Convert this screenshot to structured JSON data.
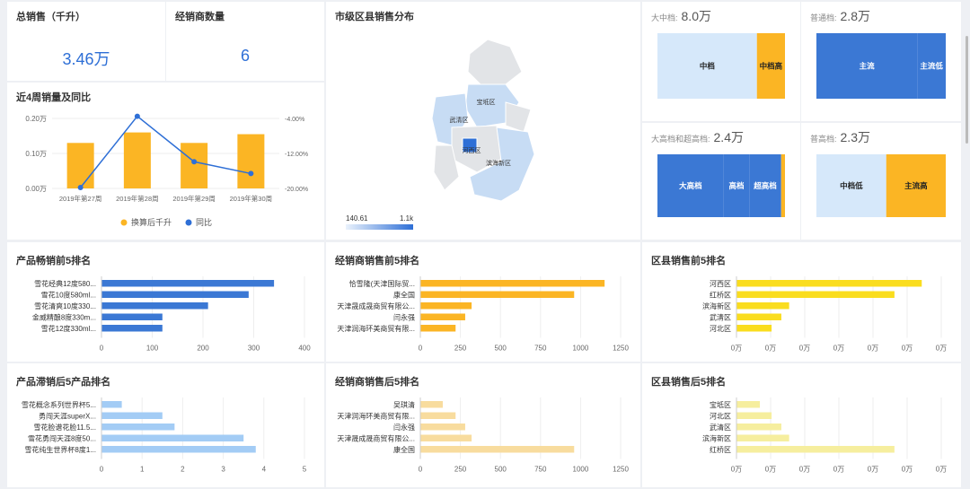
{
  "kpis": {
    "total_sales": {
      "label": "总销售（千升）",
      "value": "3.46万"
    },
    "dealer_count": {
      "label": "经销商数量",
      "value": "6"
    }
  },
  "weekly": {
    "title": "近4周销量及同比",
    "categories": [
      "2019年第27周",
      "2019年第28周",
      "2019年第29周",
      "2019年第30周"
    ],
    "bars": [
      0.13,
      0.16,
      0.13,
      0.155
    ],
    "line": [
      -19.8,
      -3.5,
      -13.9,
      -16.6
    ],
    "left_ticks": [
      "0.20万",
      "0.10万",
      "0.00万"
    ],
    "right_ticks": [
      "-4.00%",
      "-12.00%",
      "-20.00%"
    ],
    "legend": [
      "换算后千升",
      "同比"
    ]
  },
  "map": {
    "title": "市级区县销售分布",
    "districts": [
      "宝坻区",
      "武清区",
      "河西区",
      "滨海新区"
    ],
    "scale_min": "140.61",
    "scale_max": "1.1k"
  },
  "mix": [
    {
      "label": "大中档:",
      "value": "8.0万",
      "segments": [
        {
          "name": "中档",
          "frac": 0.78,
          "color": "#d6e8fa"
        },
        {
          "name": "中档高",
          "frac": 0.22,
          "color": "#fbb524"
        }
      ]
    },
    {
      "label": "普通档:",
      "value": "2.8万",
      "segments": [
        {
          "name": "主流",
          "frac": 0.78,
          "color": "#3b78d4"
        },
        {
          "name": "主流低",
          "frac": 0.22,
          "color": "#3b78d4"
        }
      ]
    },
    {
      "label": "大高档和超高档:",
      "value": "2.4万",
      "segments": [
        {
          "name": "大高档",
          "frac": 0.52,
          "color": "#3b78d4"
        },
        {
          "name": "高档",
          "frac": 0.2,
          "color": "#3b78d4"
        },
        {
          "name": "超高档",
          "frac": 0.25,
          "color": "#3b78d4"
        },
        {
          "name": "超高档",
          "frac": 0.03,
          "color": "#fbb524"
        }
      ]
    },
    {
      "label": "普高档:",
      "value": "2.3万",
      "segments": [
        {
          "name": "中档低",
          "frac": 0.54,
          "color": "#d6e8fa"
        },
        {
          "name": "主流高",
          "frac": 0.46,
          "color": "#fbb524"
        }
      ]
    }
  ],
  "rankings": [
    {
      "title": "产品畅销前5排名",
      "color": "#3b78d4",
      "categories": [
        "雪花经典12度580...",
        "雪花10度580ml...",
        "雪花清爽10度330...",
        "金威精酿8度330m...",
        "雪花12度330ml..."
      ],
      "values": [
        340,
        290,
        210,
        120,
        120
      ],
      "ticks": [
        "0",
        "100",
        "200",
        "300",
        "400"
      ],
      "max": 400
    },
    {
      "title": "经销商销售前5排名",
      "color": "#fbb524",
      "categories": [
        "恰雪隆(天津国际贸...",
        "康全国",
        "天津晟成晟商贸有限公...",
        "闫永强",
        "天津润海环美商贸有限..."
      ],
      "values": [
        1150,
        960,
        320,
        280,
        220
      ],
      "ticks": [
        "0",
        "250",
        "500",
        "750",
        "1000",
        "1250"
      ],
      "max": 1300
    },
    {
      "title": "区县销售前5排名",
      "color": "#fadd1e",
      "categories": [
        "河西区",
        "红桥区",
        "滨海新区",
        "武清区",
        "河北区"
      ],
      "values": [
        0.95,
        0.81,
        0.27,
        0.23,
        0.18
      ],
      "ticks": [
        "0万",
        "0万",
        "0万",
        "0万",
        "0万",
        "0万",
        "0万"
      ],
      "max": 1.05
    },
    {
      "title": "产品滞销后5产品排名",
      "color": "#a3ccf5",
      "categories": [
        "雪花概念系列世界杯5...",
        "勇闯天涯superX...",
        "雪花脸谱花脸11.5...",
        "雪花勇闯天涯8度50...",
        "雪花纯生世界杯8度1..."
      ],
      "values": [
        0.5,
        1.5,
        1.8,
        3.5,
        3.8
      ],
      "ticks": [
        "0",
        "1",
        "2",
        "3",
        "4",
        "5"
      ],
      "max": 5
    },
    {
      "title": "经销商销售后5排名",
      "color": "#f8dc9e",
      "categories": [
        "吴琪清",
        "天津润海环美商贸有限...",
        "闫永强",
        "天津晟成晟商贸有限公...",
        "康全国"
      ],
      "values": [
        140,
        220,
        280,
        320,
        960
      ],
      "ticks": [
        "0",
        "250",
        "500",
        "750",
        "1000",
        "1250"
      ],
      "max": 1300
    },
    {
      "title": "区县销售后5排名",
      "color": "#f6ee9e",
      "categories": [
        "宝坻区",
        "河北区",
        "武清区",
        "滨海新区",
        "红桥区"
      ],
      "values": [
        0.12,
        0.18,
        0.23,
        0.27,
        0.81
      ],
      "ticks": [
        "0万",
        "0万",
        "0万",
        "0万",
        "0万",
        "0万",
        "0万"
      ],
      "max": 1.05
    }
  ]
}
